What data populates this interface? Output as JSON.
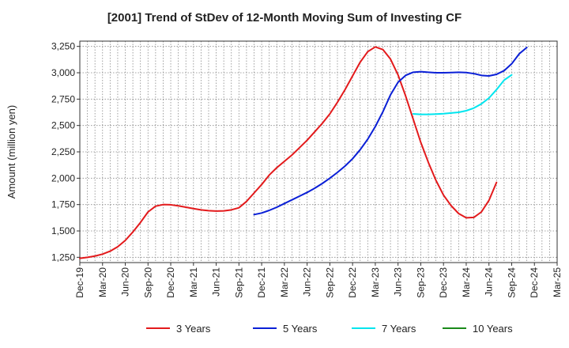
{
  "chart_data": {
    "type": "line",
    "title": "[2001]  Trend of StDev of 12-Month Moving Sum of Investing CF",
    "ylabel": "Amount (million yen)",
    "xlabel": "",
    "ylim": [
      1200,
      3300
    ],
    "yticks": [
      1250,
      1500,
      1750,
      2000,
      2250,
      2500,
      2750,
      3000,
      3250
    ],
    "ytick_labels": [
      "1,250",
      "1,500",
      "1,750",
      "2,000",
      "2,250",
      "2,500",
      "2,750",
      "3,000",
      "3,250"
    ],
    "x_start": "Dec-19",
    "x_end": "Mar-25",
    "x_tick_labels": [
      "Dec-19",
      "Mar-20",
      "Jun-20",
      "Sep-20",
      "Dec-20",
      "Mar-21",
      "Jun-21",
      "Sep-21",
      "Dec-21",
      "Mar-22",
      "Jun-22",
      "Sep-22",
      "Dec-22",
      "Mar-23",
      "Jun-23",
      "Sep-23",
      "Dec-23",
      "Mar-24",
      "Jun-24",
      "Sep-24",
      "Dec-24",
      "Mar-25"
    ],
    "grid": true,
    "legend_position": "bottom",
    "series": [
      {
        "name": "3 Years",
        "color": "#e31a1c",
        "start": "Dec-19",
        "values": [
          1240,
          1250,
          1262,
          1280,
          1308,
          1350,
          1410,
          1490,
          1580,
          1680,
          1735,
          1750,
          1748,
          1738,
          1725,
          1712,
          1700,
          1692,
          1688,
          1690,
          1700,
          1720,
          1780,
          1860,
          1940,
          2030,
          2100,
          2160,
          2220,
          2290,
          2360,
          2440,
          2520,
          2610,
          2720,
          2840,
          2970,
          3100,
          3200,
          3245,
          3220,
          3130,
          2980,
          2780,
          2560,
          2340,
          2150,
          1980,
          1840,
          1740,
          1665,
          1625,
          1628,
          1680,
          1790,
          1960
        ]
      },
      {
        "name": "5 Years",
        "color": "#0a1fd6",
        "start": "Nov-21",
        "values": [
          1655,
          1670,
          1695,
          1725,
          1760,
          1795,
          1830,
          1865,
          1905,
          1950,
          2000,
          2055,
          2115,
          2185,
          2270,
          2370,
          2490,
          2630,
          2790,
          2910,
          2975,
          3005,
          3010,
          3005,
          3000,
          3000,
          3002,
          3005,
          3002,
          2992,
          2975,
          2970,
          2985,
          3020,
          3085,
          3180,
          3240
        ]
      },
      {
        "name": "7 Years",
        "color": "#00e5ee",
        "start": "Aug-23",
        "values": [
          2610,
          2605,
          2605,
          2608,
          2612,
          2618,
          2625,
          2640,
          2665,
          2705,
          2760,
          2840,
          2930,
          2980
        ]
      },
      {
        "name": "10 Years",
        "color": "#1a8a1a",
        "start": "Sep-24",
        "values": []
      }
    ]
  }
}
